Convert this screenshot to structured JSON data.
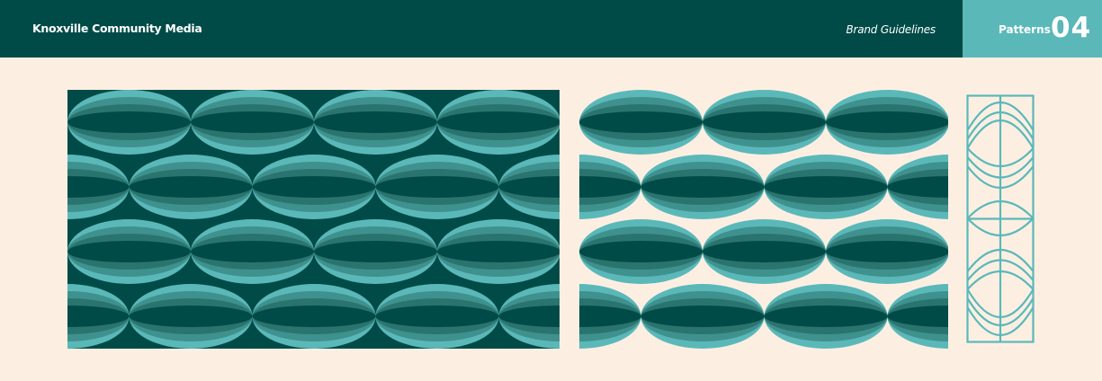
{
  "header": {
    "organization": "Knoxville Community Media",
    "document_title": "Brand Guidelines"
  },
  "section": {
    "label": "Patterns",
    "number": "04"
  },
  "colors": {
    "dark_teal": "#004b47",
    "mid_dark_teal": "#2a7470",
    "mid_teal": "#3f918e",
    "light_teal": "#5bb8b9",
    "cream": "#fcefe2"
  }
}
